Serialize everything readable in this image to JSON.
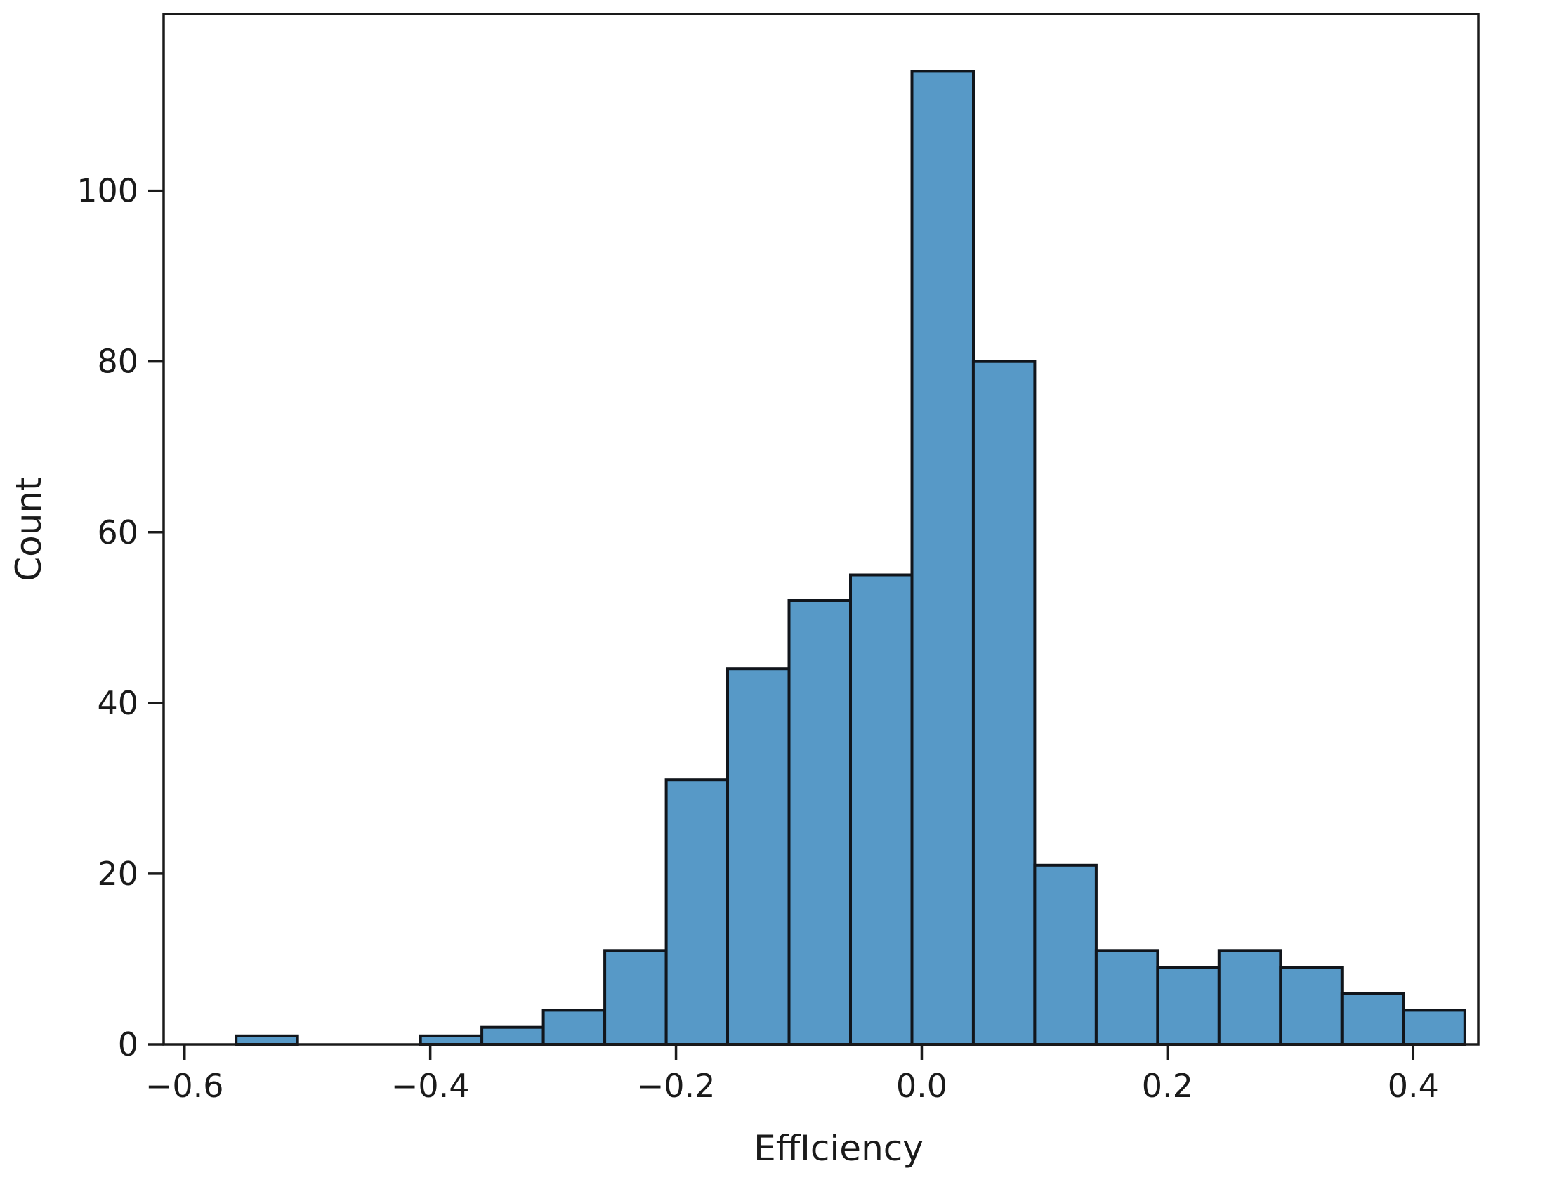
{
  "chart_data": {
    "type": "bar",
    "subtype": "histogram",
    "title": "",
    "xlabel": "EffIciency",
    "ylabel": "Count",
    "bin_start": -0.558,
    "bin_width": 0.05,
    "bin_edges": [
      -0.558,
      -0.508,
      -0.458,
      -0.408,
      -0.358,
      -0.308,
      -0.258,
      -0.208,
      -0.158,
      -0.108,
      -0.058,
      -0.008,
      0.042,
      0.092,
      0.142,
      0.192,
      0.242,
      0.292,
      0.342,
      0.392,
      0.442
    ],
    "counts": [
      1,
      0,
      0,
      1,
      2,
      4,
      11,
      31,
      44,
      52,
      55,
      114,
      80,
      21,
      11,
      9,
      11,
      9,
      6,
      4
    ],
    "x_ticks": [
      -0.6,
      -0.4,
      -0.2,
      0.0,
      0.2,
      0.4
    ],
    "x_tick_labels": [
      "−0.6",
      "−0.4",
      "−0.2",
      "0.0",
      "0.2",
      "0.4"
    ],
    "y_ticks": [
      0,
      20,
      40,
      60,
      80,
      100
    ],
    "y_tick_labels": [
      "0",
      "20",
      "40",
      "60",
      "80",
      "100"
    ],
    "xlim": [
      -0.617,
      0.453
    ],
    "ylim": [
      0,
      120.7
    ],
    "grid": false,
    "legend": null,
    "colors": {
      "bar_fill": "#5799C7",
      "bar_edge": "#11151B",
      "axis": "#1a1a1a",
      "background": "#ffffff"
    }
  }
}
